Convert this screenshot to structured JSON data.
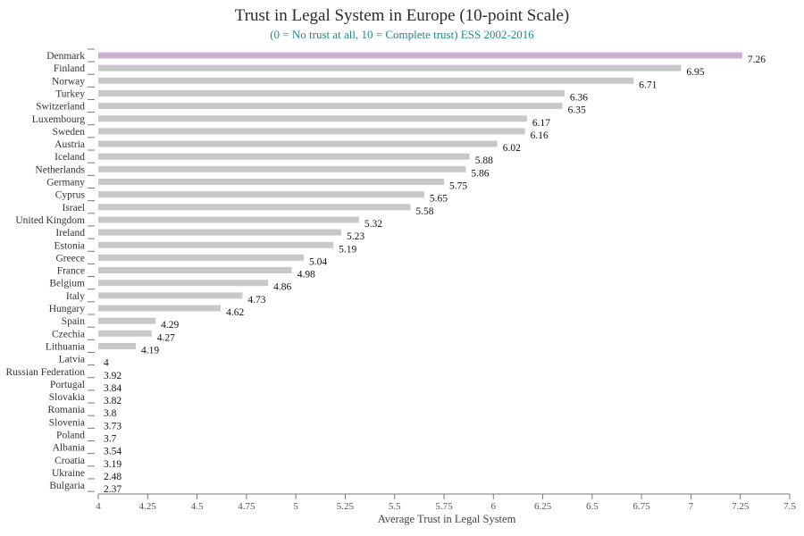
{
  "chart_data": {
    "type": "bar",
    "orientation": "horizontal",
    "title": "Trust in Legal System in Europe (10-point Scale)",
    "subtitle": "(0 = No trust at all, 10 = Complete trust) ESS 2002-2016",
    "xlabel": "Average Trust in Legal System",
    "ylabel": "",
    "xlim": [
      4,
      7.5
    ],
    "xticks": [
      "4",
      "4.25",
      "4.5",
      "4.75",
      "5",
      "5.25",
      "5.5",
      "5.75",
      "6",
      "6.25",
      "6.5",
      "6.75",
      "7",
      "7.25",
      "7.5"
    ],
    "categories": [
      "Denmark",
      "Finland",
      "Norway",
      "Turkey",
      "Switzerland",
      "Luxembourg",
      "Sweden",
      "Austria",
      "Iceland",
      "Netherlands",
      "Germany",
      "Cyprus",
      "Israel",
      "United Kingdom",
      "Ireland",
      "Estonia",
      "Greece",
      "France",
      "Belgium",
      "Italy",
      "Hungary",
      "Spain",
      "Czechia",
      "Lithuania",
      "Latvia",
      "Russian Federation",
      "Portugal",
      "Slovakia",
      "Romania",
      "Slovenia",
      "Poland",
      "Albania",
      "Croatia",
      "Ukraine",
      "Bulgaria"
    ],
    "values": [
      7.26,
      6.95,
      6.71,
      6.36,
      6.35,
      6.17,
      6.16,
      6.02,
      5.88,
      5.86,
      5.75,
      5.65,
      5.58,
      5.32,
      5.23,
      5.19,
      5.04,
      4.98,
      4.86,
      4.73,
      4.62,
      4.29,
      4.27,
      4.19,
      4,
      3.92,
      3.84,
      3.82,
      3.8,
      3.73,
      3.7,
      3.54,
      3.19,
      2.48,
      2.37
    ],
    "value_labels": [
      "7.26",
      "6.95",
      "6.71",
      "6.36",
      "6.35",
      "6.17",
      "6.16",
      "6.02",
      "5.88",
      "5.86",
      "5.75",
      "5.65",
      "5.58",
      "5.32",
      "5.23",
      "5.19",
      "5.04",
      "4.98",
      "4.86",
      "4.73",
      "4.62",
      "4.29",
      "4.27",
      "4.19",
      "4",
      "3.92",
      "3.84",
      "3.82",
      "3.8",
      "3.73",
      "3.7",
      "3.54",
      "3.19",
      "2.48",
      "2.37"
    ],
    "highlight_category": "Denmark",
    "colors": {
      "bar": "#c8c8c8",
      "highlight": "#cbb0d1",
      "subtitle": "#1f8a8a",
      "axis": "#777777"
    },
    "grid": false,
    "legend": "none"
  }
}
